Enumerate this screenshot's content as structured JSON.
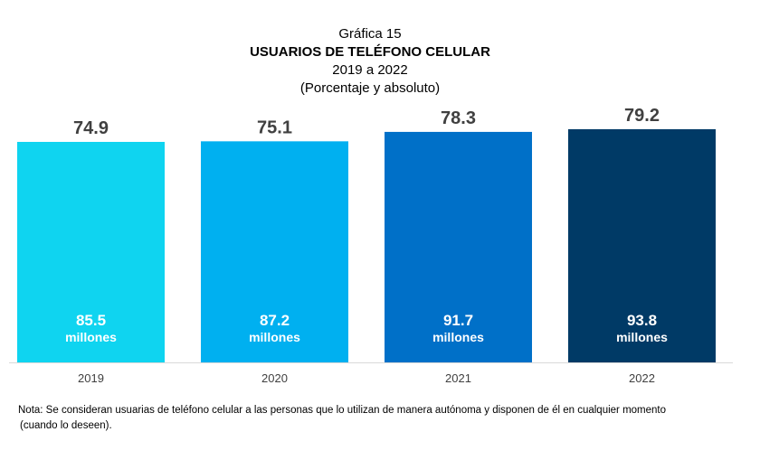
{
  "header": {
    "figure_number": "Gráfica 15",
    "title": "USUARIOS DE TELÉFONO CELULAR",
    "period": "2019 a 2022",
    "subtitle": "(Porcentaje y absoluto)"
  },
  "chart_data": {
    "type": "bar",
    "categories": [
      "2019",
      "2020",
      "2021",
      "2022"
    ],
    "series": [
      {
        "values": [
          74.9,
          75.1,
          78.3,
          79.2
        ],
        "value_labels": [
          "74.9",
          "75.1",
          "78.3",
          "79.2"
        ],
        "absolute_labels": [
          "85.5",
          "87.2",
          "91.7",
          "93.8"
        ],
        "absolute_unit": "millones",
        "colors": [
          "#0fd4f0",
          "#00b0f0",
          "#0070c8",
          "#003a66"
        ]
      }
    ],
    "title": "USUARIOS DE TELÉFONO CELULAR",
    "xlabel": "",
    "ylabel": "",
    "ylim": [
      0,
      80
    ],
    "grid": false
  },
  "footer": {
    "note_line1": "Nota: Se consideran usuarias de teléfono celular a las personas que lo utilizan de manera autónoma y disponen de él en cualquier momento",
    "note_line2": "(cuando lo deseen)."
  }
}
